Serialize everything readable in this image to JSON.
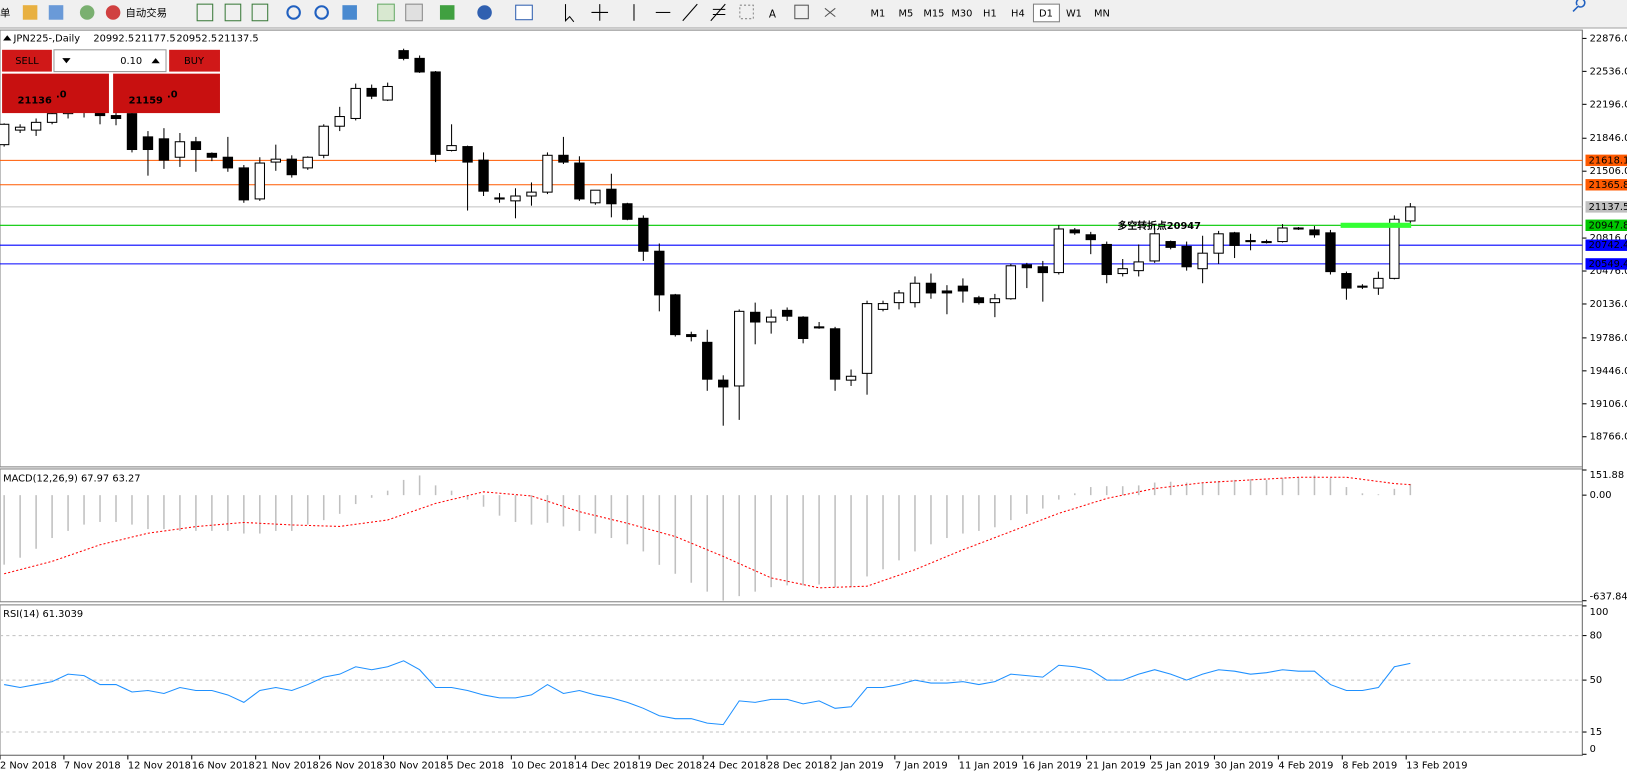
{
  "toolbar": {
    "left_text": "单",
    "auto_trade": "自动交易",
    "timeframes": [
      "M1",
      "M5",
      "M15",
      "M30",
      "H1",
      "H4",
      "D1",
      "W1",
      "MN"
    ],
    "active": "D1"
  },
  "trade_panel": {
    "sell": "SELL",
    "lot": "0.10",
    "buy": "BUY",
    "bid": "21136",
    "bid_fraction": ".0",
    "ask": "21159",
    "ask_fraction": ".0"
  },
  "annotation": {
    "text": "多空转折点20947",
    "color": "#33ff33"
  },
  "chart_data": [
    {
      "type": "candlestick",
      "title": "JPN225-,Daily",
      "categories": [
        "2 Nov 2018",
        null,
        null,
        null,
        "7 Nov 2018",
        null,
        null,
        null,
        "12 Nov 2018",
        null,
        null,
        null,
        "16 Nov 2018",
        null,
        null,
        null,
        "21 Nov 2018",
        null,
        null,
        null,
        "26 Nov 2018",
        null,
        null,
        null,
        "30 Nov 2018",
        null,
        null,
        null,
        "5 Dec 2018",
        null,
        null,
        null,
        "10 Dec 2018",
        null,
        null,
        null,
        "14 Dec 2018",
        null,
        null,
        null,
        "19 Dec 2018",
        null,
        null,
        null,
        "24 Dec 2018",
        null,
        null,
        null,
        "28 Dec 2018",
        null,
        null,
        null,
        "2 Jan 2019",
        null,
        null,
        null,
        "7 Jan 2019",
        null,
        null,
        null,
        "11 Jan 2019",
        null,
        null,
        null,
        "16 Jan 2019",
        null,
        null,
        null,
        "21 Jan 2019",
        null,
        null,
        null,
        "25 Jan 2019",
        null,
        null,
        null,
        "30 Jan 2019",
        null,
        null,
        null,
        "4 Feb 2019",
        null,
        null,
        null,
        "8 Feb 2019",
        null,
        null,
        null,
        "13 Feb 2019"
      ],
      "open": [
        21780,
        21930,
        21930,
        22010,
        22100,
        22150,
        22120,
        22080,
        22100,
        21860,
        21840,
        21650,
        21810,
        21690,
        21650,
        21540,
        21220,
        21600,
        21630,
        21540,
        21670,
        21970,
        22050,
        22360,
        22240,
        22750,
        22670,
        22530,
        21720,
        21760,
        21620,
        21230,
        21200,
        21250,
        21290,
        21670,
        21590,
        21180,
        21320,
        21170,
        21020,
        20680,
        20230,
        19820,
        19740,
        19350,
        19290,
        20050,
        19950,
        20070,
        20000,
        19900,
        19880,
        19350,
        19420,
        20080,
        20150,
        20150,
        20350,
        20270,
        20320,
        20200,
        20150,
        20190,
        20540,
        20520,
        20460,
        20900,
        20850,
        20750,
        20450,
        20480,
        20580,
        20780,
        20730,
        20500,
        20660,
        20870,
        20790,
        20780,
        20780,
        20920,
        20900,
        20870,
        20450,
        20320,
        20300,
        20400,
        20992.5
      ],
      "high": [
        22000,
        21990,
        22050,
        22230,
        22250,
        22280,
        22200,
        22150,
        22150,
        21920,
        21950,
        21900,
        21860,
        21700,
        21860,
        21570,
        21650,
        21780,
        21670,
        21660,
        21990,
        22170,
        22410,
        22400,
        22420,
        22770,
        22700,
        22540,
        21990,
        21770,
        21700,
        21280,
        21330,
        21390,
        21700,
        21860,
        21660,
        21310,
        21480,
        21180,
        21050,
        20760,
        20240,
        19850,
        19870,
        19400,
        20080,
        20150,
        20080,
        20100,
        20010,
        19950,
        19900,
        19460,
        20170,
        20170,
        20280,
        20420,
        20450,
        20330,
        20400,
        20220,
        20240,
        20550,
        20560,
        20580,
        20950,
        20920,
        20880,
        20780,
        20600,
        20750,
        20920,
        20790,
        20780,
        20840,
        20890,
        20880,
        20860,
        20800,
        20960,
        20930,
        20940,
        20900,
        20470,
        20340,
        20470,
        21050,
        21177.5
      ],
      "low": [
        21760,
        21900,
        21870,
        21990,
        22050,
        22060,
        21990,
        21980,
        21700,
        21460,
        21530,
        21550,
        21500,
        21610,
        21500,
        21180,
        21200,
        21510,
        21440,
        21520,
        21640,
        21920,
        22030,
        22250,
        22230,
        22650,
        22520,
        21600,
        21710,
        21100,
        21250,
        21180,
        21020,
        21150,
        21270,
        21580,
        21200,
        21160,
        21030,
        21000,
        20580,
        20060,
        19800,
        19750,
        19240,
        18880,
        18940,
        19720,
        19830,
        19960,
        19730,
        19880,
        19240,
        19290,
        19200,
        20060,
        20080,
        20100,
        20190,
        20030,
        20150,
        20130,
        20000,
        20180,
        20300,
        20160,
        20440,
        20850,
        20650,
        20350,
        20420,
        20420,
        20560,
        20700,
        20480,
        20350,
        20550,
        20610,
        20690,
        20760,
        20770,
        20900,
        20820,
        20440,
        20180,
        20290,
        20230,
        20390,
        20952.5
      ],
      "close": [
        21990,
        21960,
        22010,
        22100,
        22150,
        22120,
        22080,
        22050,
        21730,
        21730,
        21620,
        21810,
        21730,
        21650,
        21540,
        21210,
        21590,
        21630,
        21470,
        21650,
        21970,
        22070,
        22360,
        22280,
        22380,
        22670,
        22530,
        21680,
        21770,
        21600,
        21300,
        21220,
        21250,
        21290,
        21670,
        21600,
        21220,
        21310,
        21170,
        21010,
        20680,
        20230,
        19820,
        19800,
        19360,
        19280,
        20060,
        19950,
        20000,
        20010,
        19780,
        19890,
        19360,
        19390,
        20140,
        20140,
        20250,
        20350,
        20250,
        20250,
        20270,
        20150,
        20190,
        20530,
        20510,
        20460,
        20910,
        20870,
        20800,
        20440,
        20500,
        20570,
        20860,
        20720,
        20520,
        20660,
        20860,
        20740,
        20780,
        20780,
        20920,
        20910,
        20850,
        20470,
        20300,
        20310,
        20400,
        21010,
        21137.5
      ],
      "up_color": "#ffffff",
      "down_color": "#000000",
      "ylim": [
        18455,
        22962
      ],
      "yticks": [
        {
          "value": 22876,
          "label": "22876.0"
        },
        {
          "value": 22536,
          "label": "22536.0"
        },
        {
          "value": 22196,
          "label": "22196.0"
        },
        {
          "value": 21846,
          "label": "21846.0"
        },
        {
          "value": 21506,
          "label": "21506.0"
        },
        {
          "value": 20816,
          "label": "20816.0"
        },
        {
          "value": 20476,
          "label": "20476.0"
        },
        {
          "value": 20136,
          "label": "20136.0"
        },
        {
          "value": 19786,
          "label": "19786.0"
        },
        {
          "value": 19446,
          "label": "19446.0"
        },
        {
          "value": 19106,
          "label": "19106.0"
        },
        {
          "value": 18766,
          "label": "18766.0"
        }
      ],
      "levels": [
        {
          "value": 21618.1,
          "color": "#ff5a00"
        },
        {
          "value": 21365.8,
          "color": "#ff5a00"
        },
        {
          "value": 21137.5,
          "color": "#c0c0c0"
        },
        {
          "value": 20947.8,
          "color": "#00c800"
        },
        {
          "value": 20742.4,
          "color": "#0000ff"
        },
        {
          "value": 20549.4,
          "color": "#0000ff"
        }
      ]
    },
    {
      "type": "macd",
      "title": "MACD(12,26,9) 67.97 63.27",
      "histogram": {
        "color": "#c0c0c0",
        "values": [
          -420,
          -378,
          -324,
          -259,
          -216,
          -178,
          -162,
          -162,
          -178,
          -205,
          -205,
          -216,
          -216,
          -216,
          -216,
          -232,
          -232,
          -216,
          -216,
          -178,
          -151,
          -113,
          -54,
          -16,
          27,
          92,
          119,
          59,
          27,
          -27,
          -70,
          -124,
          -162,
          -178,
          -167,
          -189,
          -216,
          -232,
          -259,
          -297,
          -340,
          -421,
          -475,
          -529,
          -583,
          -637,
          -610,
          -583,
          -556,
          -545,
          -545,
          -540,
          -556,
          -556,
          -491,
          -448,
          -394,
          -340,
          -297,
          -259,
          -232,
          -216,
          -194,
          -151,
          -113,
          -81,
          -27,
          11,
          49,
          54,
          54,
          59,
          76,
          81,
          76,
          76,
          86,
          92,
          97,
          92,
          103,
          108,
          119,
          103,
          49,
          11,
          5,
          38,
          67.97
        ]
      },
      "signal": {
        "color": "#ff0000",
        "x": [
          0,
          3,
          6,
          9,
          12,
          15,
          18,
          21,
          24,
          27,
          30,
          33,
          36,
          39,
          42,
          45,
          48,
          51,
          54,
          57,
          60,
          63,
          66,
          69,
          72,
          75,
          78,
          81,
          84,
          87,
          88
        ],
        "values": [
          -475,
          -400,
          -300,
          -230,
          -190,
          -165,
          -180,
          -189,
          -150,
          -50,
          20,
          -5,
          -100,
          -170,
          -250,
          -370,
          -500,
          -560,
          -550,
          -450,
          -330,
          -220,
          -110,
          -20,
          40,
          75,
          92,
          108,
          108,
          70,
          63.27
        ]
      },
      "ylim": [
        -637.84,
        151.88
      ],
      "yticks": [
        151.88,
        {
          "value": 0,
          "label": "0.00"
        },
        -637.84
      ]
    },
    {
      "type": "line",
      "title": "RSI(14) 61.3039",
      "color": "#1e90ff",
      "values": [
        47,
        45,
        47,
        49,
        54,
        53,
        47,
        47,
        42,
        43,
        41,
        45,
        43,
        43,
        40,
        35,
        43,
        45,
        43,
        47,
        52,
        54,
        59,
        57,
        59,
        63,
        57,
        45,
        45,
        43,
        40,
        38,
        38,
        40,
        47,
        41,
        43,
        40,
        38,
        35,
        31,
        26,
        24,
        24,
        21,
        20,
        36,
        35,
        37,
        37,
        34,
        36,
        31,
        32,
        45,
        45,
        47,
        50,
        48,
        48,
        49,
        47,
        49,
        54,
        53,
        52,
        60,
        59,
        57,
        50,
        50,
        54,
        57,
        54,
        50,
        54,
        57,
        56,
        54,
        55,
        57,
        56,
        56,
        47,
        43,
        43,
        45,
        59,
        61.3039
      ],
      "ylim": [
        0,
        100
      ],
      "yticks": [
        100,
        80,
        50,
        15,
        0
      ],
      "grid": true
    }
  ]
}
